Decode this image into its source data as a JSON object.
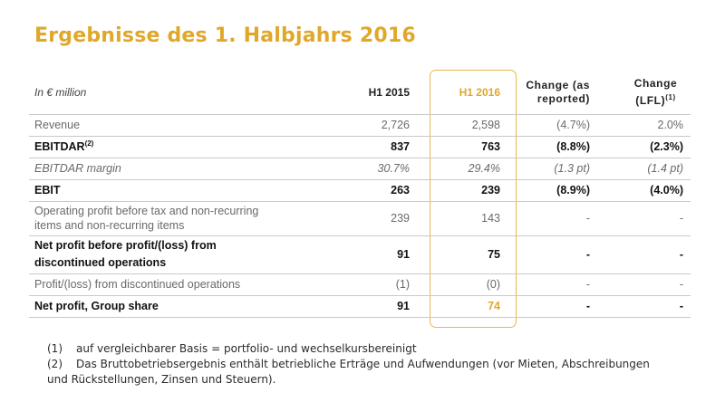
{
  "title": "Ergebnisse des 1. Halbjahrs 2016",
  "table": {
    "headers": {
      "label": "In € million",
      "h1_2015": "H1 2015",
      "h1_2016": "H1 2016",
      "change_reported_line1": "Change (as",
      "change_reported_line2": "reported)",
      "change_lfl_line1": "Change",
      "change_lfl_line2": "(LFL)",
      "change_lfl_sup": "(1)"
    },
    "rows": [
      {
        "label": "Revenue",
        "h1_2015": "2,726",
        "h1_2016": "2,598",
        "change_reported": "(4.7%)",
        "change_lfl": "2.0%"
      },
      {
        "label": "EBITDAR",
        "label_sup": "(2)",
        "h1_2015": "837",
        "h1_2016": "763",
        "change_reported": "(8.8%)",
        "change_lfl": "(2.3%)"
      },
      {
        "label": "EBITDAR margin",
        "h1_2015": "30.7%",
        "h1_2016": "29.4%",
        "change_reported": "(1.3 pt)",
        "change_lfl": "(1.4 pt)"
      },
      {
        "label": "EBIT",
        "h1_2015": "263",
        "h1_2016": "239",
        "change_reported": "(8.9%)",
        "change_lfl": "(4.0%)"
      },
      {
        "label_line1": "Operating profit before tax and non-recurring",
        "label_line2": "items and non-recurring items",
        "h1_2015": "239",
        "h1_2016": "143",
        "change_reported": "-",
        "change_lfl": "-"
      },
      {
        "label_line1": "Net profit before profit/(loss) from",
        "label_line2": "discontinued operations",
        "h1_2015": "91",
        "h1_2016": "75",
        "change_reported": "-",
        "change_lfl": "-"
      },
      {
        "label": "Profit/(loss) from discontinued operations",
        "h1_2015": "(1)",
        "h1_2016": "(0)",
        "change_reported": "-",
        "change_lfl": "-"
      },
      {
        "label": "Net profit, Group share",
        "h1_2015": "91",
        "h1_2016": "74",
        "change_reported": "-",
        "change_lfl": "-"
      }
    ]
  },
  "footnotes": [
    {
      "mark": "(1)",
      "text": "auf vergleichbarer Basis = portfolio- und wechselkursbereinigt"
    },
    {
      "mark": "(2)",
      "text_line1": "Das Bruttobetriebsergebnis enthält betriebliche Erträge und Aufwendungen (vor Mieten, Abschreibungen",
      "text_line2": "und Rückstellungen, Zinsen und Steuern)."
    }
  ],
  "colors": {
    "accent": "#e0a82a",
    "rule": "#c9c9c9"
  }
}
